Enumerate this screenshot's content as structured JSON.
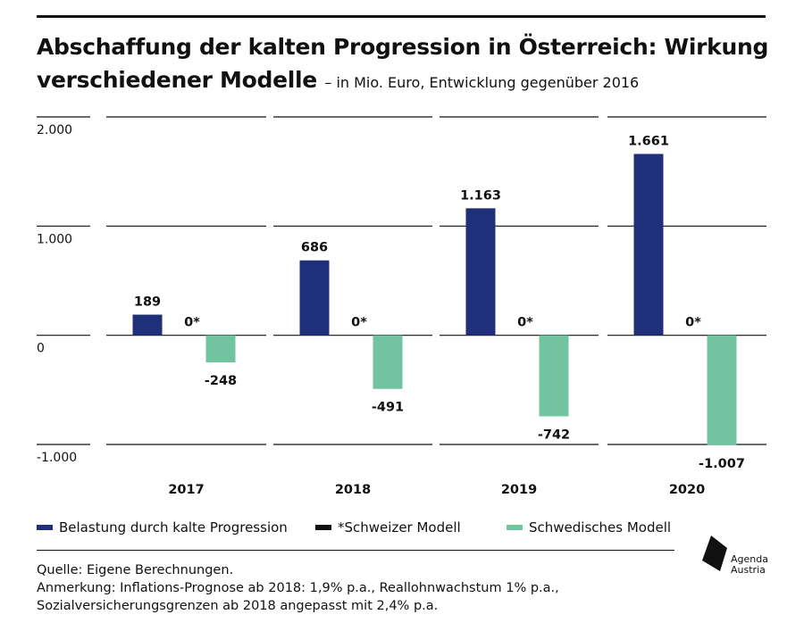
{
  "header": {
    "title": "Abschaffung der kalten Progression in Österreich: Wirkung verschiedener Modelle",
    "subtitle": "– in Mio. Euro, Entwicklung gegenüber 2016"
  },
  "chart_data": {
    "type": "bar",
    "categories": [
      "2017",
      "2018",
      "2019",
      "2020"
    ],
    "series": [
      {
        "name": "Belastung durch kalte Progression",
        "values": [
          189,
          686,
          1163,
          1661
        ],
        "labels": [
          "189",
          "686",
          "1.163",
          "1.661"
        ],
        "color": "#1f2f7a"
      },
      {
        "name": "*Schweizer Modell",
        "values": [
          0,
          0,
          0,
          0
        ],
        "labels": [
          "0*",
          "0*",
          "0*",
          "0*"
        ],
        "color": "#111111"
      },
      {
        "name": "Schwedisches Modell",
        "values": [
          -248,
          -491,
          -742,
          -1007
        ],
        "labels": [
          "-248",
          "-491",
          "-742",
          "-1.007"
        ],
        "color": "#72c4a0"
      }
    ],
    "ylim": [
      -1000,
      2000
    ],
    "yticks": [
      2000,
      1000,
      0,
      -1000
    ],
    "ytick_labels": [
      "2.000",
      "1.000",
      "0",
      "-1.000"
    ],
    "grid": true,
    "legend_position": "bottom"
  },
  "legend": {
    "items": [
      {
        "label": "Belastung durch kalte Progression",
        "color": "#1f2f7a"
      },
      {
        "label": "*Schweizer Modell",
        "color": "#111111"
      },
      {
        "label": "Schwedisches Modell",
        "color": "#72c4a0"
      }
    ]
  },
  "footnotes": {
    "source": "Quelle: Eigene Berechnungen.",
    "note_line1": "Anmerkung: Inflations-Prognose ab 2018: 1,9% p.a., Reallohnwachstum 1% p.a.,",
    "note_line2": "Sozialversicherungsgrenzen ab 2018 angepasst mit 2,4% p.a."
  },
  "logo": {
    "line1": "Agenda",
    "line2": "Austria"
  }
}
